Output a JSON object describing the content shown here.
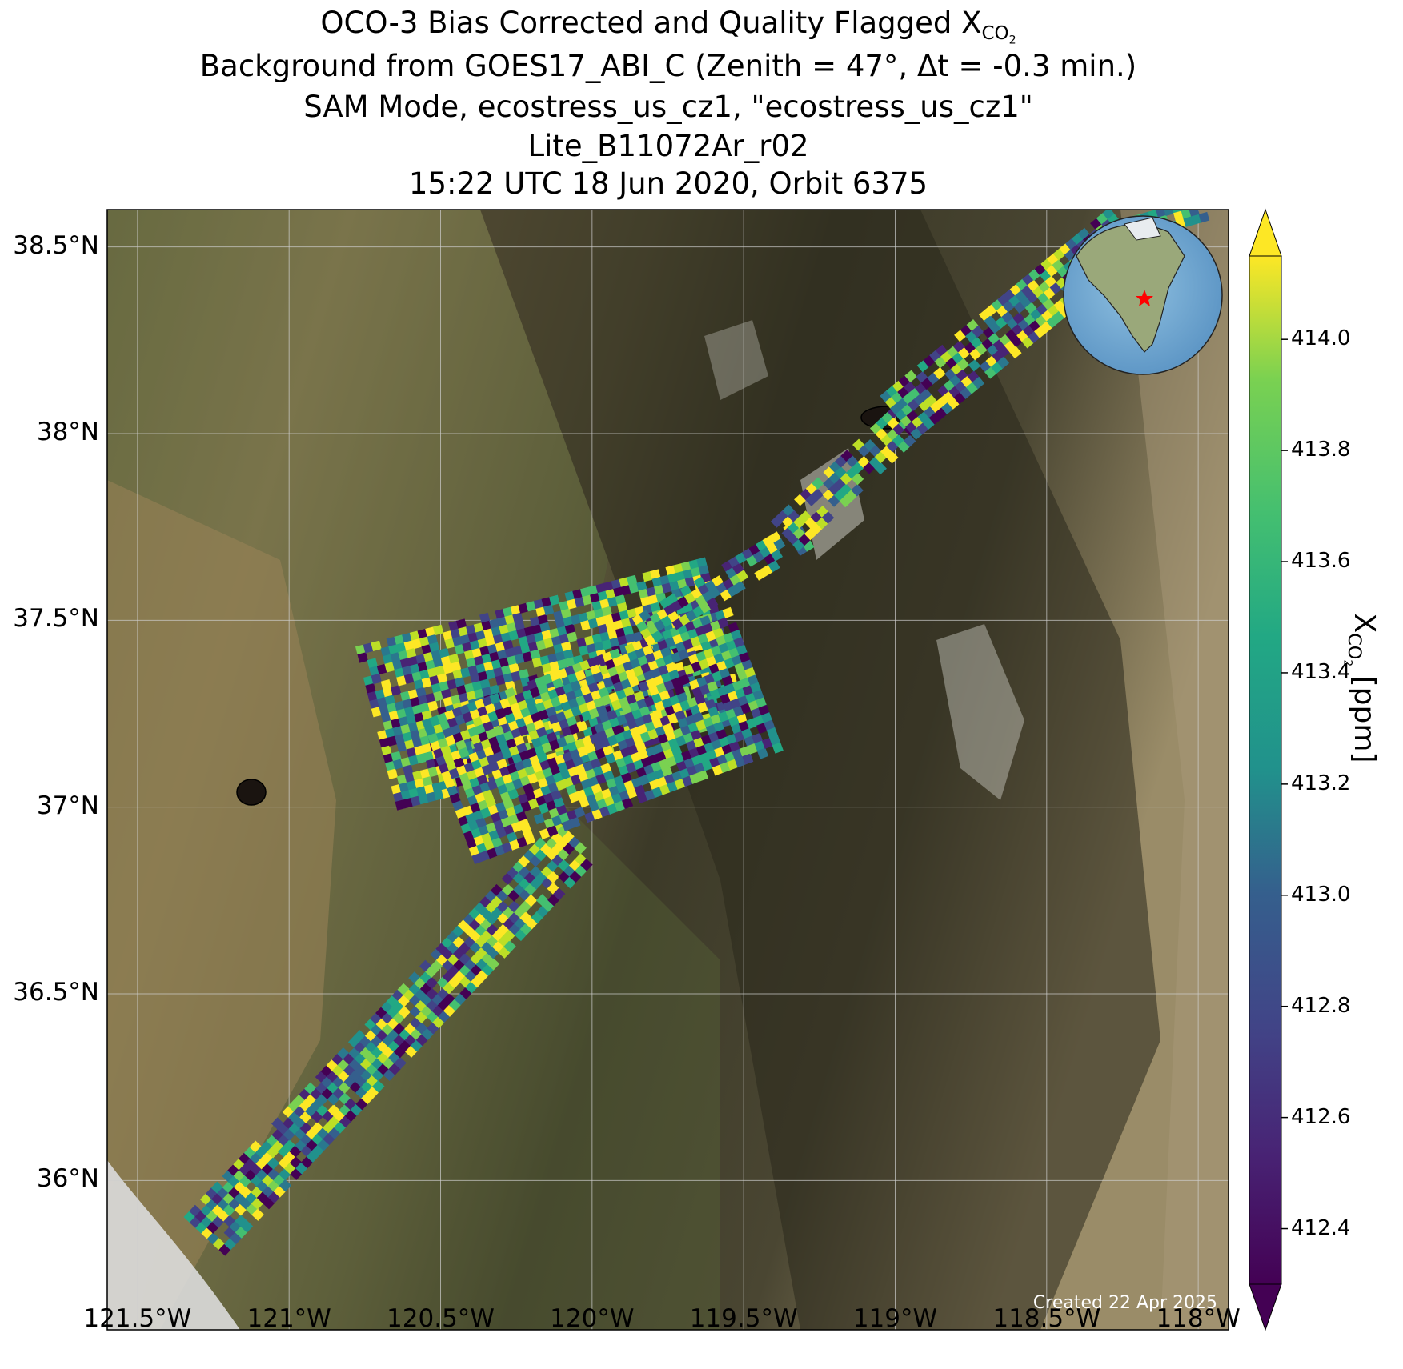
{
  "title": {
    "line1_text": "OCO-3 Bias Corrected and Quality Flagged X",
    "line1_sub": "CO",
    "line1_subsub": "2",
    "line2": "Background from GOES17_ABI_C (Zenith = 47°, Δt = -0.3 min.)",
    "line3": "SAM Mode, ecostress_us_cz1, \"ecostress_us_cz1\"",
    "line4": "Lite_B11072Ar_r02",
    "line5": "15:22 UTC 18 Jun 2020, Orbit 6375"
  },
  "axes": {
    "lon_labels": [
      "121.5°W",
      "121°W",
      "120.5°W",
      "120°W",
      "119.5°W",
      "119°W",
      "118.5°W",
      "118°W"
    ],
    "lat_labels": [
      "38.5°N",
      "38°N",
      "37.5°N",
      "37°N",
      "36.5°N",
      "36°N"
    ],
    "lon_range": [
      -121.6,
      -117.9
    ],
    "lat_range": [
      35.6,
      38.6
    ],
    "grid": true
  },
  "colorbar": {
    "label_main": "X",
    "label_sub": "CO",
    "label_subsub": "2",
    "label_unit": " [ppm]",
    "ticks": [
      "414.0",
      "413.8",
      "413.6",
      "413.4",
      "413.2",
      "413.0",
      "412.8",
      "412.6",
      "412.4"
    ],
    "range": [
      412.4,
      414.0
    ],
    "colormap": "viridis"
  },
  "credit": "Created 22 Apr 2025",
  "inset": {
    "marker_color": "#ff0000",
    "ocean_color": "#6fa6d0"
  },
  "colors": {
    "grid": "#cfcfcf",
    "background_dark": "#2e2c1f",
    "background_light": "#8a7a55"
  }
}
